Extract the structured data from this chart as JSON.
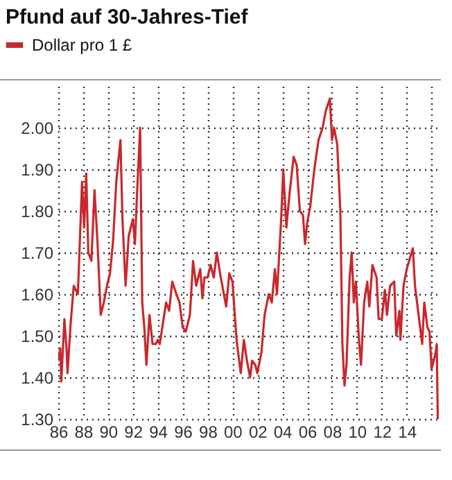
{
  "chart_data": {
    "type": "line",
    "title": "Pfund auf 30-Jahres-Tief",
    "legend": "top left",
    "grid": true,
    "line_style": "solid",
    "marker": "none",
    "x": [
      "1986-01",
      "1986-03",
      "1986-04",
      "1986-07",
      "1986-09",
      "1986-10",
      "1987-01",
      "1987-04",
      "1987-08",
      "1987-12",
      "1988-02",
      "1988-04",
      "1988-06",
      "1988-09",
      "1988-12",
      "1989-03",
      "1989-06",
      "1989-09",
      "1989-12",
      "1990-03",
      "1990-06",
      "1990-09",
      "1991-01",
      "1991-03",
      "1991-06",
      "1991-09",
      "1992-01",
      "1992-03",
      "1992-05",
      "1992-08",
      "1992-10",
      "1992-12",
      "1993-02",
      "1993-05",
      "1993-08",
      "1993-11",
      "1994-01",
      "1994-03",
      "1994-09",
      "1994-12",
      "1995-03",
      "1995-07",
      "1995-10",
      "1996-01",
      "1996-04",
      "1996-08",
      "1996-11",
      "1997-02",
      "1997-06",
      "1997-08",
      "1997-10",
      "1998-01",
      "1998-04",
      "1998-07",
      "1998-10",
      "1999-01",
      "1999-04",
      "1999-07",
      "1999-10",
      "2000-01",
      "2000-05",
      "2000-09",
      "2000-12",
      "2001-03",
      "2001-06",
      "2001-08",
      "2001-11",
      "2002-01",
      "2002-05",
      "2002-08",
      "2002-12",
      "2003-03",
      "2003-06",
      "2003-08",
      "2003-12",
      "2004-02",
      "2004-05",
      "2004-08",
      "2004-12",
      "2005-03",
      "2005-06",
      "2005-09",
      "2005-11",
      "2006-01",
      "2006-04",
      "2006-08",
      "2006-12",
      "2007-04",
      "2007-07",
      "2007-11",
      "2008-01",
      "2008-03",
      "2008-06",
      "2008-09",
      "2008-11",
      "2009-01",
      "2009-03",
      "2009-06",
      "2009-08",
      "2009-10",
      "2009-12",
      "2010-03",
      "2010-05",
      "2010-08",
      "2010-11",
      "2011-01",
      "2011-04",
      "2011-08",
      "2011-10",
      "2012-01",
      "2012-04",
      "2012-06",
      "2012-09",
      "2013-01",
      "2013-03",
      "2013-06",
      "2013-07",
      "2013-10",
      "2014-01",
      "2014-07",
      "2014-09",
      "2014-12",
      "2015-04",
      "2015-06",
      "2015-09",
      "2015-11",
      "2016-01",
      "2016-03",
      "2016-05",
      "2016-06",
      "2016-07"
    ],
    "series": [
      {
        "name": "Dollar pro 1 £",
        "color": "#c8282d",
        "values": [
          1.44,
          1.47,
          1.39,
          1.54,
          1.47,
          1.41,
          1.53,
          1.62,
          1.6,
          1.87,
          1.76,
          1.89,
          1.7,
          1.68,
          1.85,
          1.72,
          1.55,
          1.58,
          1.62,
          1.65,
          1.73,
          1.87,
          1.97,
          1.78,
          1.62,
          1.74,
          1.78,
          1.72,
          1.84,
          2.0,
          1.58,
          1.52,
          1.43,
          1.55,
          1.48,
          1.48,
          1.49,
          1.48,
          1.58,
          1.56,
          1.63,
          1.6,
          1.58,
          1.52,
          1.51,
          1.55,
          1.68,
          1.62,
          1.66,
          1.59,
          1.64,
          1.64,
          1.67,
          1.64,
          1.7,
          1.65,
          1.61,
          1.57,
          1.65,
          1.63,
          1.49,
          1.41,
          1.49,
          1.44,
          1.4,
          1.44,
          1.43,
          1.41,
          1.46,
          1.55,
          1.6,
          1.58,
          1.66,
          1.6,
          1.78,
          1.9,
          1.76,
          1.84,
          1.93,
          1.91,
          1.8,
          1.79,
          1.72,
          1.77,
          1.81,
          1.9,
          1.97,
          2.0,
          2.04,
          2.07,
          1.97,
          2.0,
          1.96,
          1.8,
          1.48,
          1.38,
          1.43,
          1.64,
          1.7,
          1.58,
          1.63,
          1.49,
          1.43,
          1.58,
          1.63,
          1.57,
          1.67,
          1.64,
          1.54,
          1.54,
          1.61,
          1.55,
          1.62,
          1.63,
          1.5,
          1.56,
          1.49,
          1.62,
          1.66,
          1.71,
          1.62,
          1.56,
          1.48,
          1.58,
          1.52,
          1.51,
          1.42,
          1.44,
          1.46,
          1.48,
          1.3
        ]
      }
    ],
    "xlim": [
      "1986-01",
      "2016-10"
    ],
    "xticks": [
      {
        "value": "1986",
        "label": "86"
      },
      {
        "value": "1988",
        "label": "88"
      },
      {
        "value": "1990",
        "label": "90"
      },
      {
        "value": "1992",
        "label": "92"
      },
      {
        "value": "1994",
        "label": "94"
      },
      {
        "value": "1996",
        "label": "96"
      },
      {
        "value": "1998",
        "label": "98"
      },
      {
        "value": "2000",
        "label": "00"
      },
      {
        "value": "2002",
        "label": "02"
      },
      {
        "value": "2004",
        "label": "04"
      },
      {
        "value": "2006",
        "label": "06"
      },
      {
        "value": "2008",
        "label": "08"
      },
      {
        "value": "2010",
        "label": "10"
      },
      {
        "value": "2012",
        "label": "12"
      },
      {
        "value": "2014",
        "label": "14"
      },
      {
        "value": "2016",
        "label": null
      }
    ],
    "ylim": [
      1.3,
      2.1
    ],
    "yticks": [
      {
        "value": 1.3,
        "label": "1.30"
      },
      {
        "value": 1.4,
        "label": "1.40"
      },
      {
        "value": 1.5,
        "label": "1.50"
      },
      {
        "value": 1.6,
        "label": "1.60"
      },
      {
        "value": 1.7,
        "label": "1.70"
      },
      {
        "value": 1.8,
        "label": "1.80"
      },
      {
        "value": 1.9,
        "label": "1.90"
      },
      {
        "value": 2.0,
        "label": "2.00"
      }
    ]
  }
}
